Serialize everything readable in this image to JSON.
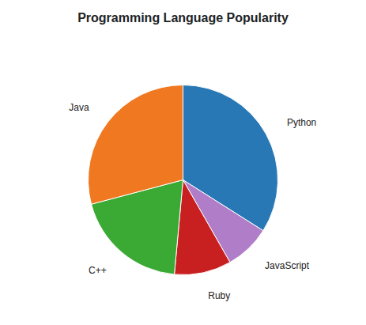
{
  "chart_data": {
    "type": "pie",
    "title": "Programming Language Popularity",
    "categories": [
      "Python",
      "JavaScript",
      "Ruby",
      "C++",
      "Java"
    ],
    "values": [
      35,
      8,
      10,
      20,
      30
    ],
    "colors": [
      "#2878b5",
      "#b07ec8",
      "#c82020",
      "#3aaa35",
      "#f07820"
    ]
  }
}
